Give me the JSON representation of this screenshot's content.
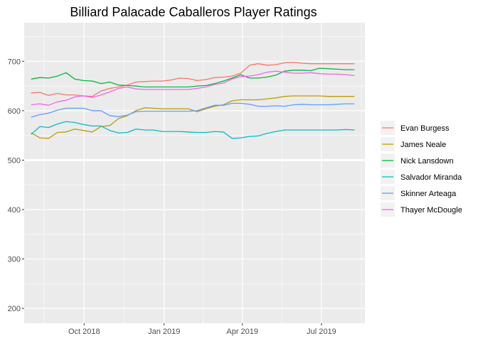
{
  "chart_data": {
    "type": "line",
    "title": "Billiard Palacade Caballeros Player Ratings",
    "xlabel": "",
    "ylabel": "",
    "x_start": "2018-08-01",
    "x_end": "2019-08-08",
    "xlim": [
      "2018-07-24",
      "2019-08-20"
    ],
    "ylim": [
      170,
      778
    ],
    "x_ticks": [
      {
        "date": "2018-10-01",
        "label": "Oct 2018"
      },
      {
        "date": "2019-01-01",
        "label": "Jan 2019"
      },
      {
        "date": "2019-04-01",
        "label": "Apr 2019"
      },
      {
        "date": "2019-07-01",
        "label": "Jul 2019"
      }
    ],
    "y_ticks": [
      200,
      300,
      400,
      500,
      600,
      700
    ],
    "grid": true,
    "highlight_line_y": 500,
    "legend_position": "right",
    "series": [
      {
        "name": "Evan Burgess",
        "color": "#F8766D",
        "values": [
          636,
          637,
          631,
          635,
          632,
          632,
          630,
          629,
          640,
          645,
          648,
          652,
          658,
          659,
          660,
          660,
          662,
          666,
          665,
          661,
          663,
          667,
          668,
          670,
          676,
          692,
          695,
          692,
          693,
          697,
          698,
          696,
          695,
          695,
          695,
          695,
          695,
          695
        ]
      },
      {
        "name": "James Neale",
        "color": "#B79F00",
        "values": [
          555,
          545,
          544,
          556,
          557,
          563,
          560,
          557,
          568,
          570,
          584,
          590,
          600,
          606,
          605,
          604,
          604,
          604,
          604,
          598,
          604,
          609,
          612,
          620,
          622,
          622,
          622,
          624,
          626,
          629,
          630,
          630,
          630,
          630,
          629,
          629,
          629,
          629
        ]
      },
      {
        "name": "Nick Lansdown",
        "color": "#00BA38",
        "values": [
          664,
          667,
          666,
          670,
          677,
          664,
          661,
          660,
          655,
          658,
          652,
          651,
          650,
          648,
          648,
          648,
          648,
          648,
          648,
          650,
          651,
          655,
          660,
          666,
          673,
          666,
          666,
          668,
          672,
          680,
          682,
          682,
          681,
          686,
          685,
          684,
          683,
          683
        ]
      },
      {
        "name": "Salvador Miranda",
        "color": "#00BFC4",
        "values": [
          552,
          568,
          566,
          573,
          578,
          576,
          572,
          569,
          569,
          560,
          555,
          556,
          563,
          561,
          561,
          558,
          558,
          558,
          557,
          556,
          556,
          558,
          557,
          544,
          545,
          548,
          549,
          554,
          558,
          561,
          561,
          561,
          561,
          561,
          561,
          561,
          562,
          561
        ]
      },
      {
        "name": "Skinner Arteaga",
        "color": "#619CFF",
        "values": [
          587,
          592,
          595,
          601,
          605,
          605,
          605,
          600,
          600,
          590,
          588,
          591,
          598,
          599,
          599,
          599,
          599,
          599,
          599,
          600,
          606,
          611,
          611,
          615,
          615,
          613,
          609,
          609,
          610,
          609,
          612,
          613,
          612,
          612,
          612,
          613,
          614,
          614
        ]
      },
      {
        "name": "Thayer McDougle",
        "color": "#F564E3",
        "values": [
          612,
          614,
          611,
          618,
          621,
          628,
          630,
          627,
          632,
          638,
          645,
          648,
          644,
          643,
          643,
          643,
          643,
          643,
          643,
          645,
          648,
          653,
          656,
          664,
          669,
          670,
          673,
          678,
          680,
          678,
          676,
          676,
          677,
          675,
          674,
          674,
          673,
          671
        ]
      }
    ]
  }
}
